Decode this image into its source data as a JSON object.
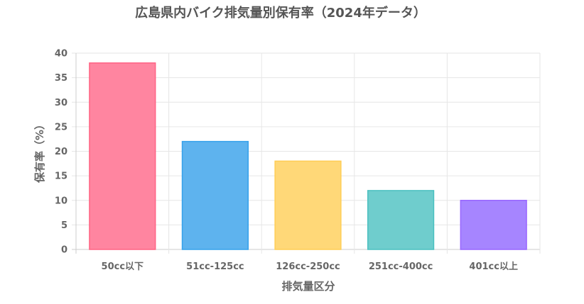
{
  "chart_data": {
    "type": "bar",
    "title": "広島県内バイク排気量別保有率（2024年データ）",
    "xlabel": "排気量区分",
    "ylabel": "保有率（%）",
    "categories": [
      "50cc以下",
      "51cc-125cc",
      "126cc-250cc",
      "251cc-400cc",
      "401cc以上"
    ],
    "values": [
      38,
      22,
      18,
      12,
      10
    ],
    "ylim": [
      0,
      40
    ],
    "yticks": [
      0,
      5,
      10,
      15,
      20,
      25,
      30,
      35,
      40
    ],
    "grid": true,
    "legend": "none",
    "bar_fill_colors": [
      "#ff85a0",
      "#5eb3ee",
      "#ffd878",
      "#6fcdcd",
      "#a685ff"
    ],
    "bar_border_colors": [
      "#ff6384",
      "#36a2eb",
      "#ffce56",
      "#4bc0c0",
      "#9966ff"
    ]
  }
}
